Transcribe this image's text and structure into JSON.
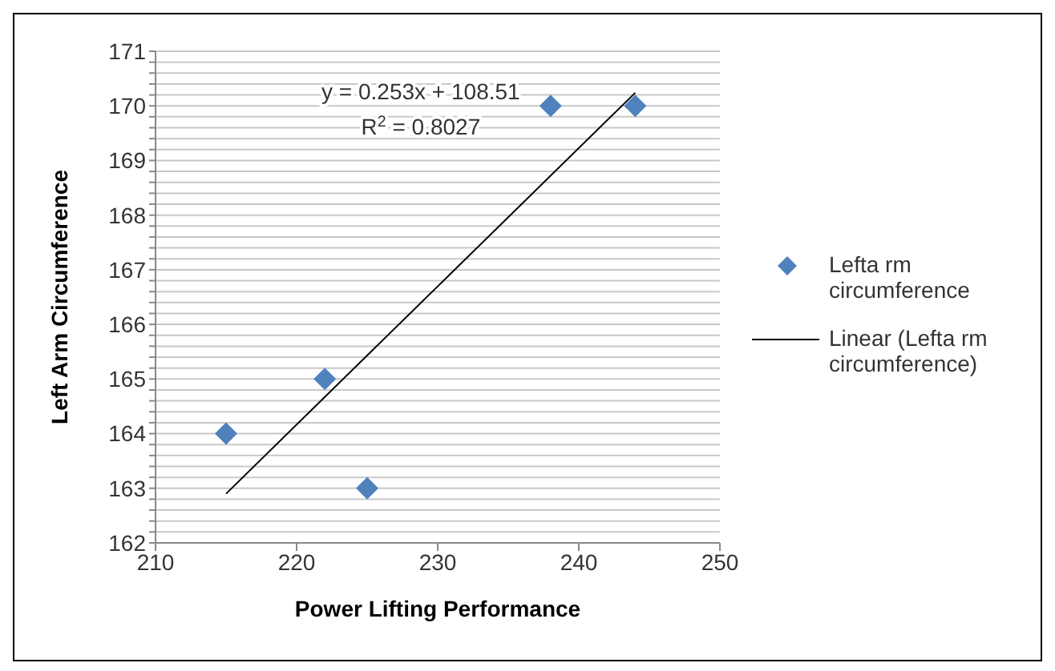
{
  "chart_data": {
    "type": "scatter",
    "xlabel": "Power Lifting Performance",
    "ylabel": "Left Arm Circumference",
    "xlim": [
      210,
      250
    ],
    "xticks": [
      210,
      220,
      230,
      240,
      250
    ],
    "ylim": [
      162,
      171
    ],
    "yticks": [
      162,
      {
        "value": 162.2,
        "label": null
      },
      {
        "value": 162.4,
        "label": null
      },
      {
        "value": 162.6,
        "label": null
      },
      {
        "value": 162.8,
        "label": null
      },
      163,
      {
        "value": 163.2,
        "label": null
      },
      {
        "value": 163.4,
        "label": null
      },
      {
        "value": 163.6,
        "label": null
      },
      {
        "value": 163.8,
        "label": null
      },
      164,
      {
        "value": 164.2,
        "label": null
      },
      {
        "value": 164.4,
        "label": null
      },
      {
        "value": 164.6,
        "label": null
      },
      {
        "value": 164.8,
        "label": null
      },
      165,
      {
        "value": 165.2,
        "label": null
      },
      {
        "value": 165.4,
        "label": null
      },
      {
        "value": 165.6,
        "label": null
      },
      {
        "value": 165.8,
        "label": null
      },
      166,
      {
        "value": 166.2,
        "label": null
      },
      {
        "value": 166.4,
        "label": null
      },
      {
        "value": 166.6,
        "label": null
      },
      {
        "value": 166.8,
        "label": null
      },
      167,
      {
        "value": 167.2,
        "label": null
      },
      {
        "value": 167.4,
        "label": null
      },
      {
        "value": 167.6,
        "label": null
      },
      {
        "value": 167.8,
        "label": null
      },
      168,
      {
        "value": 168.2,
        "label": null
      },
      {
        "value": 168.4,
        "label": null
      },
      {
        "value": 168.6,
        "label": null
      },
      {
        "value": 168.8,
        "label": null
      },
      169,
      {
        "value": 169.2,
        "label": null
      },
      {
        "value": 169.4,
        "label": null
      },
      {
        "value": 169.6,
        "label": null
      },
      {
        "value": 169.8,
        "label": null
      },
      170,
      {
        "value": 170.2,
        "label": null
      },
      {
        "value": 170.4,
        "label": null
      },
      {
        "value": 170.6,
        "label": null
      },
      {
        "value": 170.8,
        "label": null
      },
      171
    ],
    "grid": "y",
    "legend": "right",
    "marker": "diamond",
    "annotations": [
      "y = 0.253x + 108.51",
      "R$^{2}$ = 0.8027"
    ],
    "series": [
      {
        "name": "Lefta rm circumference",
        "color": "#4f81bd",
        "x": [
          215,
          222,
          225,
          238,
          244
        ],
        "values": [
          164,
          165,
          163,
          170,
          170
        ]
      },
      {
        "name": "Linear (Lefta rm circumference)",
        "type": "line",
        "color": "#000000",
        "marker": "none",
        "x": [
          215,
          244
        ],
        "values": [
          162.9,
          170.24
        ]
      }
    ]
  }
}
